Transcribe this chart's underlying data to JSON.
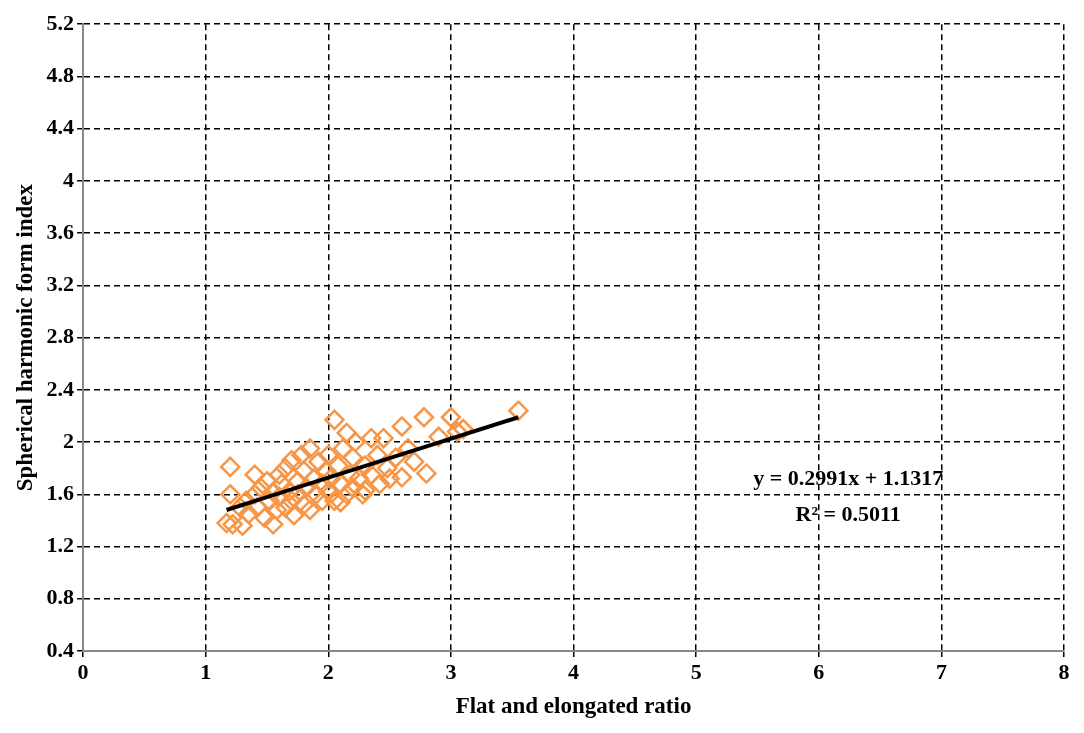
{
  "chart_data": {
    "type": "scatter",
    "xlabel": "Flat and elongated ratio",
    "ylabel": "Spherical harmonic form index",
    "xlim": [
      0,
      8
    ],
    "xticks": [
      0,
      1,
      2,
      3,
      4,
      5,
      6,
      7,
      8
    ],
    "ylim": [
      0.4,
      5.2
    ],
    "yticks": [
      0.4,
      0.8,
      1.2,
      1.6,
      2,
      2.4,
      2.8,
      3.2,
      3.6,
      4,
      4.4,
      4.8,
      5.2
    ],
    "grid": true,
    "legend": false,
    "marker": "diamond",
    "series": [
      {
        "type": "scatter",
        "color": "#f79646",
        "x": [
          1.17,
          1.22,
          1.3,
          1.2,
          1.2,
          1.28,
          1.33,
          1.35,
          1.4,
          1.4,
          1.42,
          1.45,
          1.48,
          1.5,
          1.52,
          1.55,
          1.55,
          1.58,
          1.6,
          1.6,
          1.62,
          1.65,
          1.65,
          1.68,
          1.7,
          1.7,
          1.72,
          1.75,
          1.75,
          1.78,
          1.8,
          1.8,
          1.82,
          1.85,
          1.85,
          1.88,
          1.9,
          1.92,
          1.95,
          1.95,
          1.98,
          2.0,
          2.0,
          2.02,
          2.05,
          2.05,
          2.08,
          2.1,
          2.1,
          2.12,
          2.15,
          2.15,
          2.18,
          2.2,
          2.2,
          2.22,
          2.25,
          2.28,
          2.3,
          2.3,
          2.35,
          2.35,
          2.4,
          2.42,
          2.45,
          2.48,
          2.5,
          2.55,
          2.6,
          2.6,
          2.65,
          2.7,
          2.78,
          2.8,
          2.9,
          3.0,
          3.05,
          3.1,
          3.55
        ],
        "values": [
          1.38,
          1.37,
          1.36,
          1.6,
          1.81,
          1.5,
          1.55,
          1.45,
          1.75,
          1.6,
          1.5,
          1.65,
          1.42,
          1.7,
          1.55,
          1.37,
          1.62,
          1.48,
          1.75,
          1.58,
          1.68,
          1.5,
          1.8,
          1.62,
          1.86,
          1.55,
          1.44,
          1.7,
          1.6,
          1.9,
          1.52,
          1.78,
          1.65,
          1.95,
          1.48,
          1.72,
          1.6,
          1.85,
          1.68,
          1.55,
          1.78,
          1.9,
          1.62,
          1.72,
          2.17,
          1.55,
          1.82,
          1.54,
          1.68,
          1.95,
          2.07,
          1.6,
          1.75,
          1.88,
          1.65,
          2.0,
          1.72,
          1.6,
          1.82,
          1.63,
          2.03,
          1.75,
          1.9,
          1.68,
          2.03,
          1.8,
          1.72,
          1.88,
          2.12,
          1.73,
          1.95,
          1.85,
          2.19,
          1.76,
          2.04,
          2.19,
          2.08,
          2.1,
          2.24
        ]
      },
      {
        "type": "line",
        "color": "#000000",
        "marker": "none",
        "line_style": "solid",
        "x": [
          1.17,
          3.55
        ],
        "values": [
          1.48,
          2.19
        ]
      }
    ],
    "annotations": [
      "y = 0.2991x + 1.1317",
      "R² = 0.5011"
    ]
  }
}
